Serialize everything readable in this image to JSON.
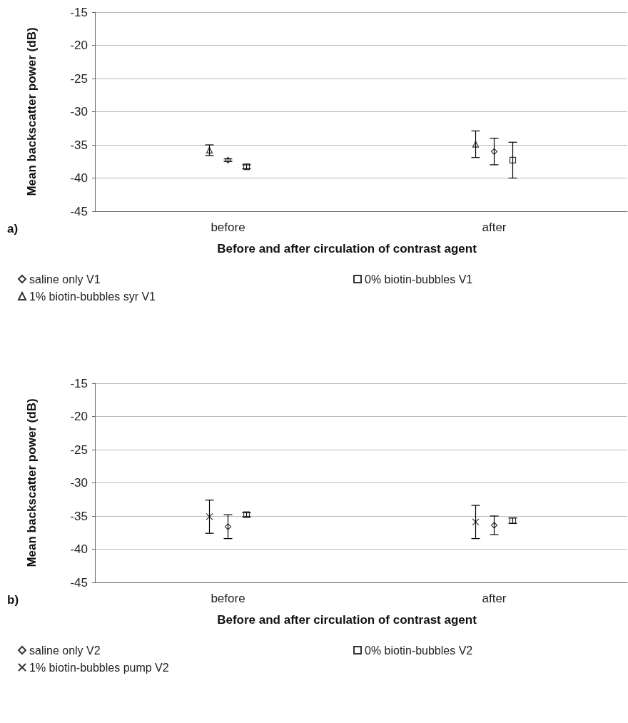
{
  "chart_data": [
    {
      "type": "scatter",
      "categories": [
        "before",
        "after"
      ],
      "xlabel": "Before and after circulation of contrast agent",
      "ylabel": "Mean backscatter power (dB)",
      "ylim": [
        -45,
        -15
      ],
      "yticks": [
        -45,
        -40,
        -35,
        -30,
        -25,
        -20,
        -15
      ],
      "grid": "y",
      "legend": "bottom",
      "annotations": [
        "a)"
      ],
      "series": [
        {
          "name": "1% biotin-bubbles syr V1",
          "color": "#000000",
          "marker": "triangle",
          "values": [
            -35.8,
            -34.9
          ],
          "errors": [
            0.8,
            2.0
          ]
        },
        {
          "name": "saline only V1",
          "color": "#000000",
          "marker": "diamond",
          "values": [
            -37.3,
            -36.0
          ],
          "errors": [
            0.2,
            2.0
          ]
        },
        {
          "name": "0% biotin-bubbles V1",
          "color": "#000000",
          "marker": "square",
          "values": [
            -38.3,
            -37.3
          ],
          "errors": [
            0.3,
            2.7
          ]
        }
      ]
    },
    {
      "type": "scatter",
      "categories": [
        "before",
        "after"
      ],
      "xlabel": "Before and after circulation of contrast agent",
      "ylabel": "Mean backscatter power (dB)",
      "ylim": [
        -45,
        -15
      ],
      "yticks": [
        -45,
        -40,
        -35,
        -30,
        -25,
        -20,
        -15
      ],
      "grid": "y",
      "legend": "bottom",
      "annotations": [
        "b)"
      ],
      "series": [
        {
          "name": "1% biotin-bubbles pump V2",
          "color": "#000000",
          "marker": "cross",
          "values": [
            -35.1,
            -35.9
          ],
          "errors": [
            2.5,
            2.5
          ]
        },
        {
          "name": "saline only V2",
          "color": "#000000",
          "marker": "diamond",
          "values": [
            -36.6,
            -36.4
          ],
          "errors": [
            1.8,
            1.4
          ]
        },
        {
          "name": "0% biotin-bubbles V2",
          "color": "#000000",
          "marker": "square",
          "values": [
            -34.8,
            -35.7
          ],
          "errors": [
            0.3,
            0.4
          ]
        }
      ]
    }
  ]
}
